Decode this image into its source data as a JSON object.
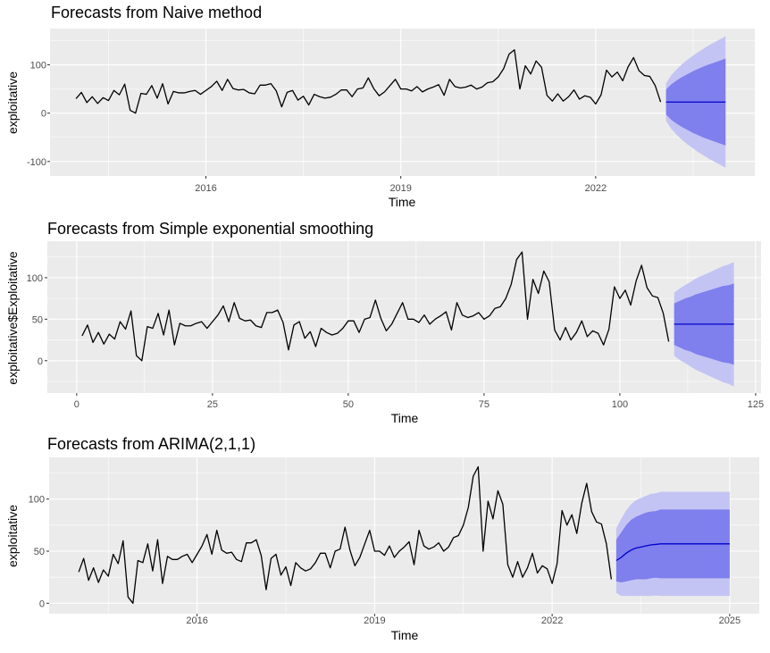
{
  "colors": {
    "panel_bg": "#ebebeb",
    "grid": "#ffffff",
    "series": "#000000",
    "pi80": "#7f7fee",
    "pi95": "#c4c4f4",
    "mean": "#0000cc"
  },
  "chart_data": [
    {
      "type": "line",
      "title": "Forecasts from Naive method",
      "xlabel": "Time",
      "ylabel": "exploitative",
      "x_kind": "time",
      "start": 2014,
      "frequency": 12,
      "xlim": [
        2013.6,
        2024.45
      ],
      "ylim": [
        -130,
        175
      ],
      "xticks": [
        2016,
        2019,
        2022
      ],
      "xtick_labels": [
        "2016",
        "2019",
        "2022"
      ],
      "yticks": [
        -100,
        0,
        100
      ],
      "ytick_labels": [
        "-100",
        "0",
        "100"
      ],
      "grid": true,
      "series": [
        30,
        43,
        22,
        34,
        20,
        32,
        26,
        47,
        38,
        60,
        6,
        0,
        41,
        39,
        57,
        31,
        61,
        19,
        45,
        42,
        42,
        45,
        47,
        39,
        47,
        55,
        66,
        47,
        70,
        51,
        48,
        49,
        42,
        40,
        58,
        58,
        61,
        46,
        13,
        43,
        47,
        27,
        35,
        17,
        39,
        34,
        31,
        33,
        39,
        48,
        48,
        34,
        50,
        52,
        73,
        51,
        36,
        44,
        57,
        70,
        50,
        50,
        46,
        55,
        44,
        50,
        54,
        59,
        37,
        70,
        55,
        52,
        54,
        58,
        50,
        54,
        63,
        65,
        75,
        92,
        122,
        131,
        50,
        98,
        81,
        108,
        95,
        37,
        25,
        40,
        25,
        34,
        48,
        29,
        36,
        33,
        19,
        38,
        89,
        75,
        85,
        67,
        96,
        115,
        88,
        78,
        76,
        57,
        23
      ],
      "forecast": {
        "mean": [
          23,
          23,
          23,
          23,
          23,
          23,
          23,
          23,
          23,
          23,
          23,
          23
        ],
        "pi80_halfwidth": [
          26,
          37,
          45,
          52,
          58,
          64,
          69,
          74,
          78,
          82,
          86,
          90
        ],
        "pi95_halfwidth": [
          39,
          56,
          68,
          79,
          88,
          96,
          104,
          111,
          118,
          124,
          130,
          136
        ]
      }
    },
    {
      "type": "line",
      "title": "Forecasts from Simple exponential smoothing",
      "xlabel": "Time",
      "ylabel": "exploitative$Exploitative",
      "x_kind": "index",
      "xlim": [
        -5.4,
        126
      ],
      "ylim": [
        -39,
        144
      ],
      "xticks": [
        0,
        25,
        50,
        75,
        100,
        125
      ],
      "xtick_labels": [
        "0",
        "25",
        "50",
        "75",
        "100",
        "125"
      ],
      "yticks": [
        0,
        50,
        100
      ],
      "ytick_labels": [
        "0",
        "50",
        "100"
      ],
      "grid": true,
      "series": [
        30,
        43,
        22,
        34,
        20,
        32,
        26,
        47,
        38,
        60,
        6,
        0,
        41,
        39,
        57,
        31,
        61,
        19,
        45,
        42,
        42,
        45,
        47,
        39,
        47,
        55,
        66,
        47,
        70,
        51,
        48,
        49,
        42,
        40,
        58,
        58,
        61,
        46,
        13,
        43,
        47,
        27,
        35,
        17,
        39,
        34,
        31,
        33,
        39,
        48,
        48,
        34,
        50,
        52,
        73,
        51,
        36,
        44,
        57,
        70,
        50,
        50,
        46,
        55,
        44,
        50,
        54,
        59,
        37,
        70,
        55,
        52,
        54,
        58,
        50,
        54,
        63,
        65,
        75,
        92,
        122,
        131,
        50,
        98,
        81,
        108,
        95,
        37,
        25,
        40,
        25,
        34,
        48,
        29,
        36,
        33,
        19,
        38,
        89,
        75,
        85,
        67,
        96,
        115,
        88,
        78,
        76,
        57,
        23
      ],
      "forecast": {
        "mean": [
          44,
          44,
          44,
          44,
          44,
          44,
          44,
          44,
          44,
          44,
          44,
          44
        ],
        "pi80_halfwidth": [
          25,
          28,
          31,
          33,
          36,
          38,
          40,
          42,
          44,
          46,
          47,
          49
        ],
        "pi95_halfwidth": [
          38,
          43,
          47,
          51,
          55,
          58,
          61,
          64,
          67,
          70,
          72,
          75
        ]
      }
    },
    {
      "type": "line",
      "title": "Forecasts from ARIMA(2,1,1)",
      "xlabel": "Time",
      "ylabel": "exploitative",
      "x_kind": "time",
      "start": 2014,
      "frequency": 12,
      "xlim": [
        2013.5,
        2025.5
      ],
      "ylim": [
        -10,
        140
      ],
      "xticks": [
        2016,
        2019,
        2022,
        2025
      ],
      "xtick_labels": [
        "2016",
        "2019",
        "2022",
        "2025"
      ],
      "yticks": [
        0,
        50,
        100
      ],
      "ytick_labels": [
        "0",
        "50",
        "100"
      ],
      "grid": true,
      "series": [
        30,
        43,
        22,
        34,
        20,
        32,
        26,
        47,
        38,
        60,
        6,
        0,
        41,
        39,
        57,
        31,
        61,
        19,
        45,
        42,
        42,
        45,
        47,
        39,
        47,
        55,
        66,
        47,
        70,
        51,
        48,
        49,
        42,
        40,
        58,
        58,
        61,
        46,
        13,
        43,
        47,
        27,
        35,
        17,
        39,
        34,
        31,
        33,
        39,
        48,
        48,
        34,
        50,
        52,
        73,
        51,
        36,
        44,
        57,
        70,
        50,
        50,
        46,
        55,
        44,
        50,
        54,
        59,
        37,
        70,
        55,
        52,
        54,
        58,
        50,
        54,
        63,
        65,
        75,
        92,
        122,
        131,
        50,
        98,
        81,
        108,
        95,
        37,
        25,
        40,
        25,
        34,
        48,
        29,
        36,
        33,
        19,
        38,
        89,
        75,
        85,
        67,
        96,
        115,
        88,
        78,
        76,
        57,
        23
      ],
      "forecast": {
        "mean": [
          41,
          44,
          48,
          51,
          53,
          54,
          55,
          56,
          56.5,
          57,
          57,
          57,
          57,
          57,
          57,
          57,
          57,
          57,
          57,
          57,
          57,
          57,
          57,
          57
        ],
        "pi80_halfwidth": [
          20,
          24,
          27,
          29,
          30,
          31,
          32,
          32,
          32,
          33,
          33,
          33,
          33,
          33,
          33,
          33,
          33,
          33,
          33,
          33,
          33,
          33,
          33,
          33
        ],
        "pi95_halfwidth": [
          31,
          37,
          41,
          44,
          46,
          47,
          48,
          49,
          49,
          50,
          50,
          50,
          50,
          50,
          50,
          50,
          50,
          50,
          50,
          50,
          50,
          50,
          50,
          50
        ]
      }
    }
  ]
}
